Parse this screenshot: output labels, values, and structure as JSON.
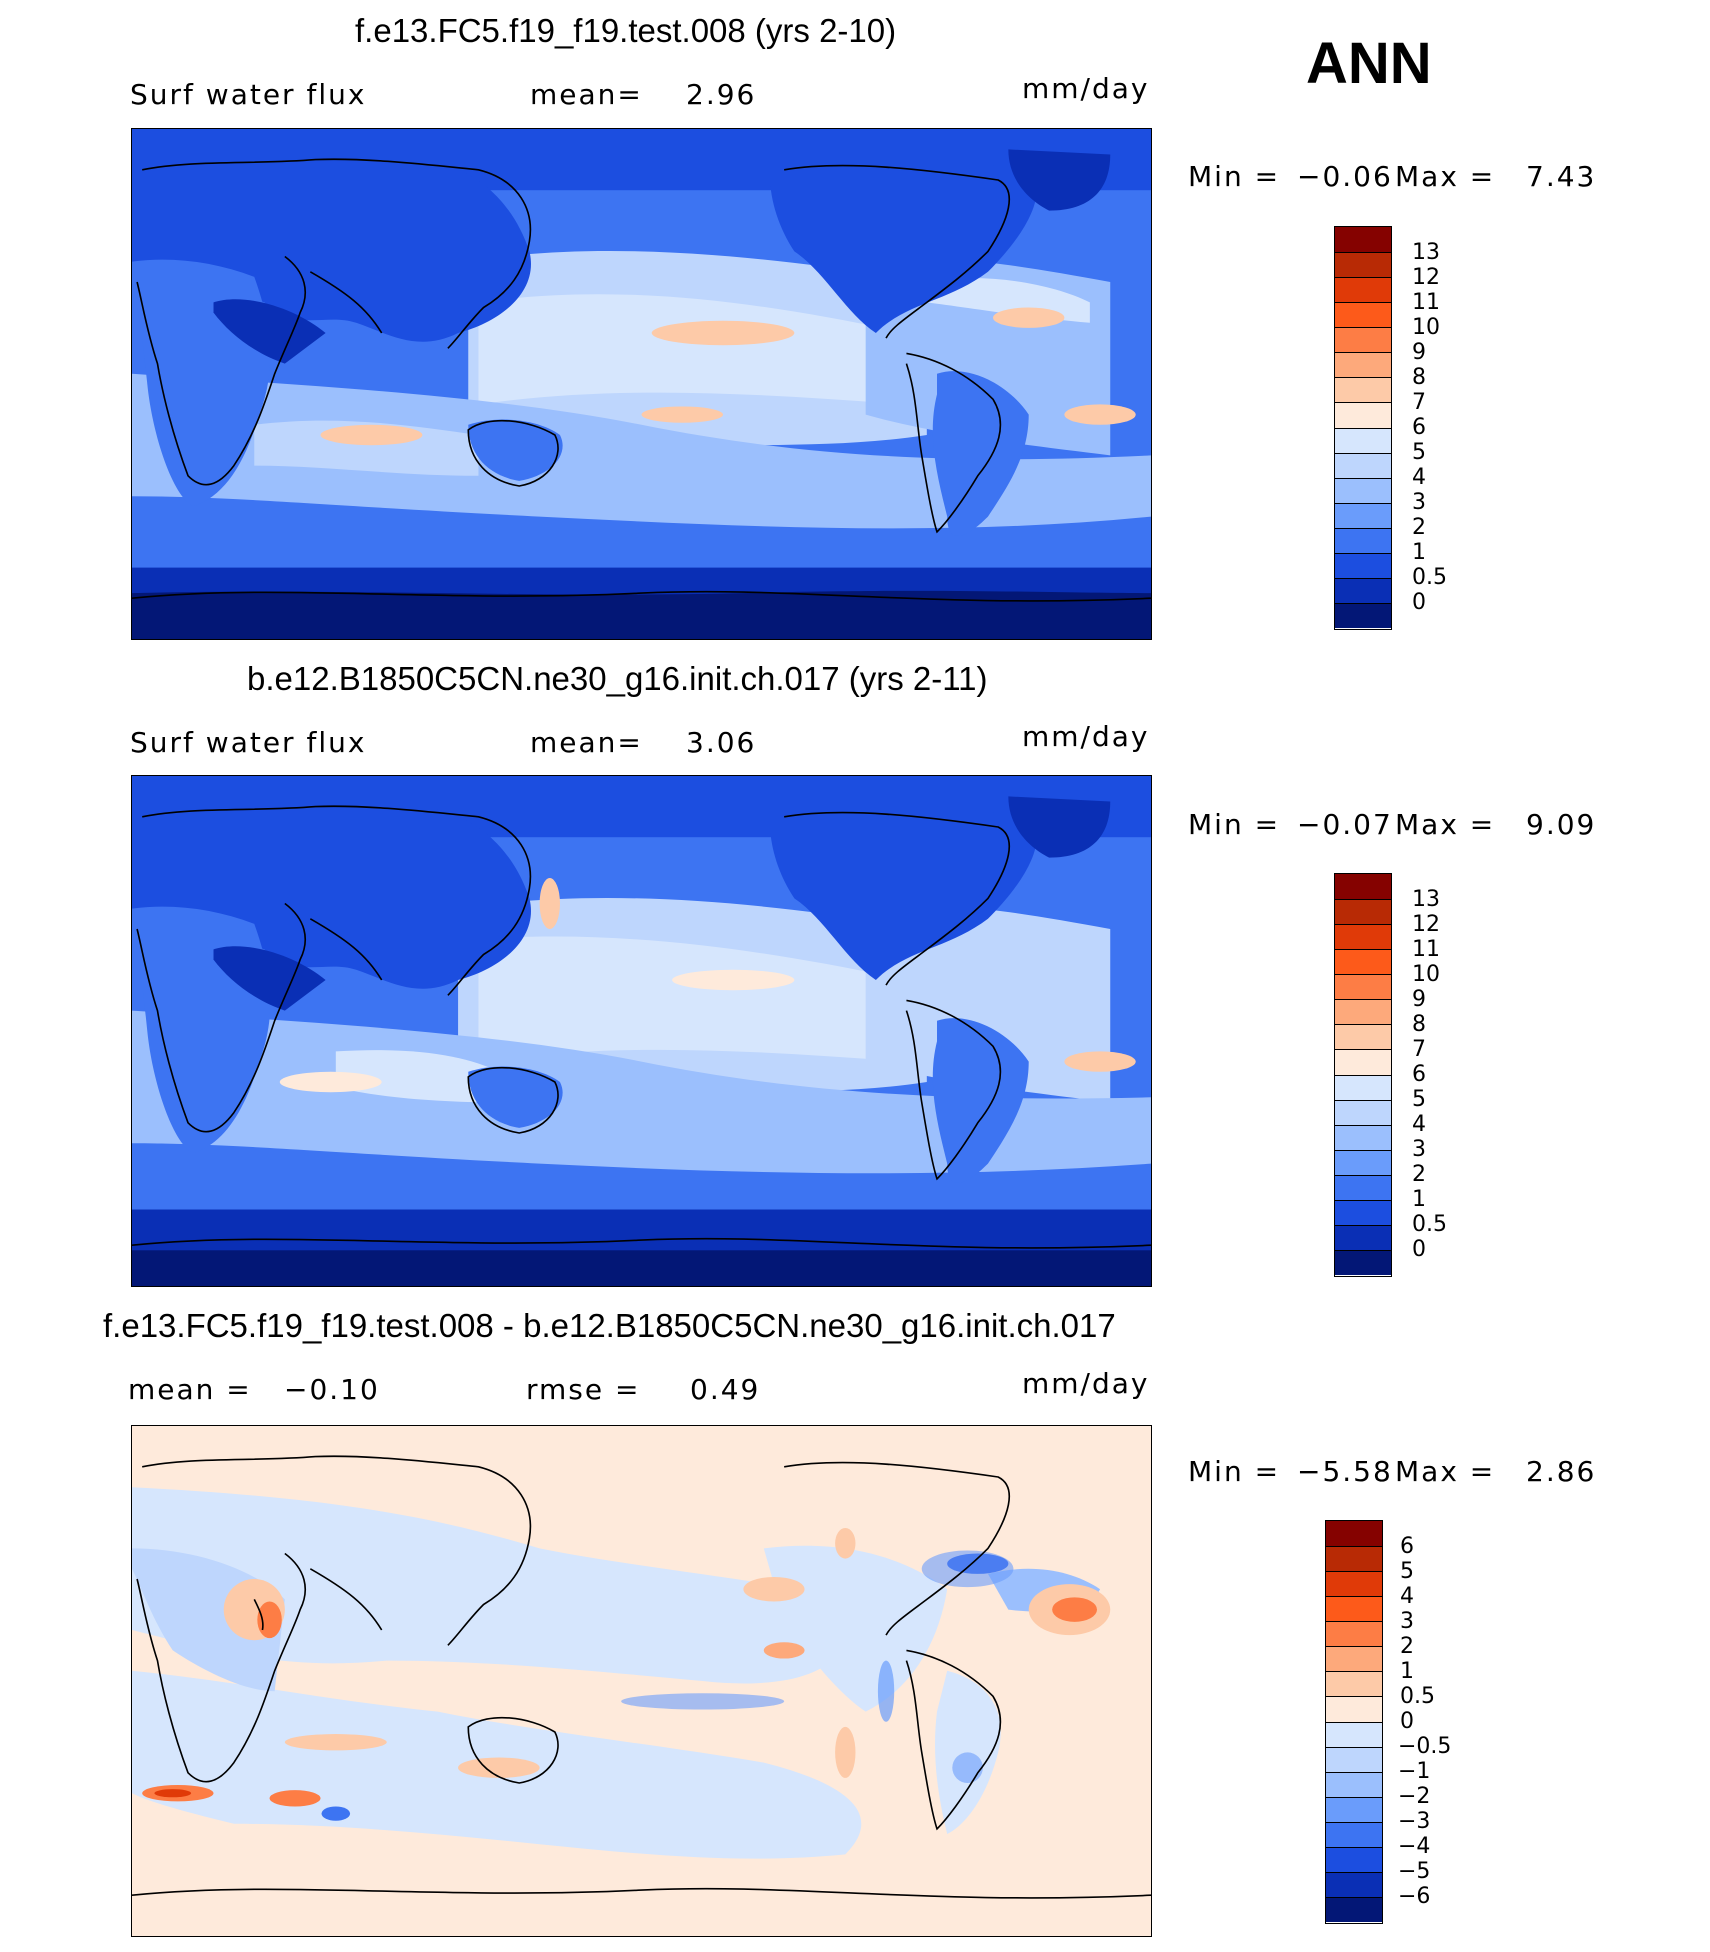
{
  "season": "ANN",
  "panels": [
    {
      "title": "f.e13.FC5.f19_f19.test.008 (yrs 2-10)",
      "left_label": "Surf water flux",
      "stat1_label": "mean=",
      "stat1_value": "2.96",
      "units": "mm/day",
      "minmax": {
        "min_label": "Min =",
        "min": "−0.06",
        "max_label": "Max =",
        "max": "7.43"
      },
      "colorbar": {
        "labels": [
          "13",
          "12",
          "11",
          "10",
          "9",
          "8",
          "7",
          "6",
          "5",
          "4",
          "3",
          "2",
          "1",
          "0.5",
          "0"
        ],
        "colors": [
          "#850200",
          "#b82a05",
          "#e03a08",
          "#fd5a1a",
          "#fd7d45",
          "#fda97b",
          "#fdcaa8",
          "#feeadb",
          "#d6e6fd",
          "#bed6fd",
          "#9bbffd",
          "#6a9cfb",
          "#3d74f2",
          "#1c4ee0",
          "#0a2fb5",
          "#031776"
        ]
      }
    },
    {
      "title": "b.e12.B1850C5CN.ne30_g16.init.ch.017 (yrs 2-11)",
      "left_label": "Surf water flux",
      "stat1_label": "mean=",
      "stat1_value": "3.06",
      "units": "mm/day",
      "minmax": {
        "min_label": "Min =",
        "min": "−0.07",
        "max_label": "Max =",
        "max": "9.09"
      },
      "colorbar": {
        "labels": [
          "13",
          "12",
          "11",
          "10",
          "9",
          "8",
          "7",
          "6",
          "5",
          "4",
          "3",
          "2",
          "1",
          "0.5",
          "0"
        ],
        "colors": [
          "#850200",
          "#b82a05",
          "#e03a08",
          "#fd5a1a",
          "#fd7d45",
          "#fda97b",
          "#fdcaa8",
          "#feeadb",
          "#d6e6fd",
          "#bed6fd",
          "#9bbffd",
          "#6a9cfb",
          "#3d74f2",
          "#1c4ee0",
          "#0a2fb5",
          "#031776"
        ]
      }
    },
    {
      "title": "f.e13.FC5.f19_f19.test.008 - b.e12.B1850C5CN.ne30_g16.init.ch.017",
      "left_label": "mean =",
      "left_value": "−0.10",
      "stat1_label": "rmse =",
      "stat1_value": "0.49",
      "units": "mm/day",
      "minmax": {
        "min_label": "Min =",
        "min": "−5.58",
        "max_label": "Max =",
        "max": "2.86"
      },
      "colorbar": {
        "labels": [
          "6",
          "5",
          "4",
          "3",
          "2",
          "1",
          "0.5",
          "0",
          "−0.5",
          "−1",
          "−2",
          "−3",
          "−4",
          "−5",
          "−6"
        ],
        "colors": [
          "#850200",
          "#b82a05",
          "#e03a08",
          "#fd5a1a",
          "#fd7d45",
          "#fda97b",
          "#fdcaa8",
          "#feeadb",
          "#d6e6fd",
          "#bed6fd",
          "#9bbffd",
          "#6a9cfb",
          "#3d74f2",
          "#1c4ee0",
          "#0a2fb5",
          "#031776"
        ]
      }
    }
  ]
}
